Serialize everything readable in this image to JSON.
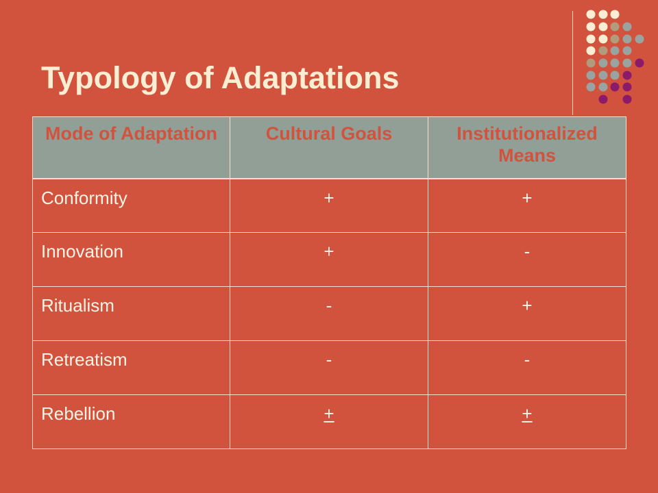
{
  "slide": {
    "title": "Typology of Adaptations"
  },
  "table": {
    "headers": [
      "Mode of Adaptation",
      "Cultural Goals",
      "Institutionalized Means"
    ],
    "rows": [
      {
        "mode": "Conformity",
        "goals": "+",
        "means": "+"
      },
      {
        "mode": "Innovation",
        "goals": "+",
        "means": "-"
      },
      {
        "mode": "Ritualism",
        "goals": "-",
        "means": "+"
      },
      {
        "mode": "Retreatism",
        "goals": "-",
        "means": "-"
      },
      {
        "mode": "Rebellion",
        "goals": "+",
        "means": "+",
        "underlined": true
      }
    ]
  },
  "colors": {
    "background": "#d2533d",
    "title": "#fbeed3",
    "header_bg": "#929f96",
    "header_text": "#d2533d",
    "cell_text": "#fcf3e6",
    "border": "#f6e0cf",
    "dot_cream": "#fbeed3",
    "dot_tan": "#b49a7c",
    "dot_gray": "#9aa3a0",
    "dot_purple": "#8b1a6b"
  }
}
